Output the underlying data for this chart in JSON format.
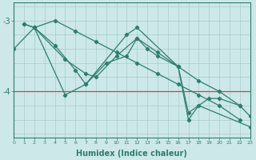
{
  "bg_color": "#cce8e8",
  "line_color": "#2e7d6e",
  "grid_color": "#aacccc",
  "hline_color": "#cc4444",
  "xlabel": "Humidex (Indice chaleur)",
  "xlabel_fontsize": 7,
  "x_min": 0,
  "x_max": 23,
  "y_min": -4.65,
  "y_max": -2.75,
  "yticks": [
    -4.0,
    -3.0
  ],
  "ytick_labels": [
    "-4",
    "-3"
  ],
  "hline_y": -4.0,
  "series": [
    {
      "x": [
        1,
        2,
        5,
        7,
        8,
        10,
        12,
        14,
        16,
        18,
        20,
        22,
        23
      ],
      "y": [
        -3.05,
        -3.1,
        -3.55,
        -3.75,
        -3.8,
        -3.5,
        -3.25,
        -3.45,
        -3.65,
        -3.85,
        -4.0,
        -4.2,
        -4.35
      ]
    },
    {
      "x": [
        2,
        4,
        6,
        7,
        9,
        11,
        12,
        13,
        14,
        16,
        17,
        19,
        20,
        22
      ],
      "y": [
        -3.1,
        -3.35,
        -3.7,
        -3.9,
        -3.6,
        -3.5,
        -3.25,
        -3.4,
        -3.5,
        -3.65,
        -4.3,
        -4.1,
        -4.1,
        -4.2
      ]
    },
    {
      "x": [
        1,
        2,
        4,
        6,
        8,
        10,
        12,
        14,
        16,
        18,
        20,
        22
      ],
      "y": [
        -3.05,
        -3.1,
        -3.0,
        -3.15,
        -3.3,
        -3.45,
        -3.6,
        -3.75,
        -3.9,
        -4.05,
        -4.2,
        -4.4
      ]
    },
    {
      "x": [
        0,
        2,
        5,
        7,
        11,
        12,
        16,
        17,
        18,
        23
      ],
      "y": [
        -3.4,
        -3.1,
        -4.05,
        -3.9,
        -3.2,
        -3.1,
        -3.65,
        -4.4,
        -4.2,
        -4.5
      ]
    }
  ]
}
